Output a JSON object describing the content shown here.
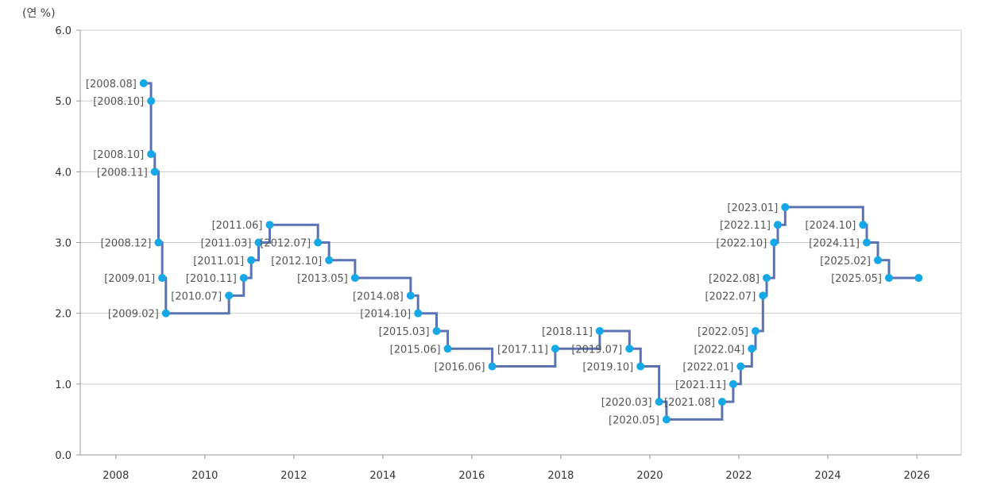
{
  "chart_data": {
    "type": "line",
    "line_shape": "step",
    "y_unit_label": "(연 %)",
    "ylim": [
      0,
      6
    ],
    "y_ticks": [
      "0.0",
      "1.0",
      "2.0",
      "3.0",
      "4.0",
      "5.0",
      "6.0"
    ],
    "xlim": [
      2007.2,
      2027.0
    ],
    "x_ticks": [
      "2008",
      "2010",
      "2012",
      "2014",
      "2016",
      "2018",
      "2020",
      "2022",
      "2024",
      "2026"
    ],
    "grid": "horizontal",
    "legend": "none",
    "colors": {
      "line": "#5b73b3",
      "point": "#16a7e6",
      "grid": "#cccccc",
      "axis": "#999999"
    },
    "points": [
      {
        "label": "[2008.08]",
        "x": "2008-08",
        "y": 5.25
      },
      {
        "label": "[2008.10]",
        "x": "2008-10",
        "y": 5.0
      },
      {
        "label": "[2008.10]",
        "x": "2008-10",
        "y": 4.25
      },
      {
        "label": "[2008.11]",
        "x": "2008-11",
        "y": 4.0
      },
      {
        "label": "[2008.12]",
        "x": "2008-12",
        "y": 3.0
      },
      {
        "label": "[2009.01]",
        "x": "2009-01",
        "y": 2.5
      },
      {
        "label": "[2009.02]",
        "x": "2009-02",
        "y": 2.0
      },
      {
        "label": "[2010.07]",
        "x": "2010-07",
        "y": 2.25
      },
      {
        "label": "[2010.11]",
        "x": "2010-11",
        "y": 2.5
      },
      {
        "label": "[2011.01]",
        "x": "2011-01",
        "y": 2.75
      },
      {
        "label": "[2011.03]",
        "x": "2011-03",
        "y": 3.0
      },
      {
        "label": "[2011.06]",
        "x": "2011-06",
        "y": 3.25
      },
      {
        "label": "[2012.07]",
        "x": "2012-07",
        "y": 3.0
      },
      {
        "label": "[2012.10]",
        "x": "2012-10",
        "y": 2.75
      },
      {
        "label": "[2013.05]",
        "x": "2013-05",
        "y": 2.5
      },
      {
        "label": "[2014.08]",
        "x": "2014-08",
        "y": 2.25
      },
      {
        "label": "[2014.10]",
        "x": "2014-10",
        "y": 2.0
      },
      {
        "label": "[2015.03]",
        "x": "2015-03",
        "y": 1.75
      },
      {
        "label": "[2015.06]",
        "x": "2015-06",
        "y": 1.5
      },
      {
        "label": "[2016.06]",
        "x": "2016-06",
        "y": 1.25
      },
      {
        "label": "[2017.11]",
        "x": "2017-11",
        "y": 1.5
      },
      {
        "label": "[2018.11]",
        "x": "2018-11",
        "y": 1.75
      },
      {
        "label": "[2019.07]",
        "x": "2019-07",
        "y": 1.5
      },
      {
        "label": "[2019.10]",
        "x": "2019-10",
        "y": 1.25
      },
      {
        "label": "[2020.03]",
        "x": "2020-03",
        "y": 0.75
      },
      {
        "label": "[2020.05]",
        "x": "2020-05",
        "y": 0.5
      },
      {
        "label": "[2021.08]",
        "x": "2021-08",
        "y": 0.75
      },
      {
        "label": "[2021.11]",
        "x": "2021-11",
        "y": 1.0
      },
      {
        "label": "[2022.01]",
        "x": "2022-01",
        "y": 1.25
      },
      {
        "label": "[2022.04]",
        "x": "2022-04",
        "y": 1.5
      },
      {
        "label": "[2022.05]",
        "x": "2022-05",
        "y": 1.75
      },
      {
        "label": "[2022.07]",
        "x": "2022-07",
        "y": 2.25
      },
      {
        "label": "[2022.08]",
        "x": "2022-08",
        "y": 2.5
      },
      {
        "label": "[2022.10]",
        "x": "2022-10",
        "y": 3.0
      },
      {
        "label": "[2022.11]",
        "x": "2022-11",
        "y": 3.25
      },
      {
        "label": "[2023.01]",
        "x": "2023-01",
        "y": 3.5
      },
      {
        "label": "[2024.10]",
        "x": "2024-10",
        "y": 3.25
      },
      {
        "label": "[2024.11]",
        "x": "2024-11",
        "y": 3.0
      },
      {
        "label": "[2025.02]",
        "x": "2025-02",
        "y": 2.75
      },
      {
        "label": "[2025.05]",
        "x": "2025-05",
        "y": 2.5
      },
      {
        "label": "",
        "x": "2026-01",
        "y": 2.5
      }
    ]
  }
}
